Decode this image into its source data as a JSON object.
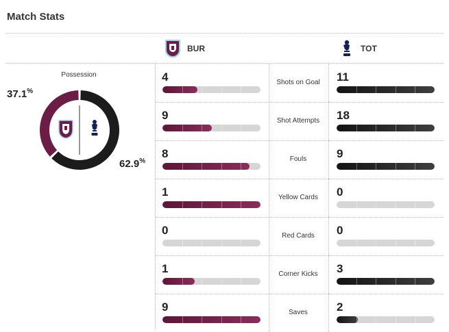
{
  "title": "Match Stats",
  "teams": {
    "home": {
      "abbr": "BUR",
      "color": "#6c1d45",
      "crest": "burnley-crest-icon"
    },
    "away": {
      "abbr": "TOT",
      "color": "#1b1b1b",
      "crest": "tottenham-crest-icon"
    }
  },
  "possession": {
    "label": "Possession",
    "home_pct": "37.1",
    "away_pct": "62.9",
    "home_value": 37.1,
    "away_value": 62.9,
    "pct_sign": "%"
  },
  "stats": [
    {
      "label": "Shots on Goal",
      "home": "4",
      "away": "11",
      "home_fill": 0.36,
      "away_fill": 1.0
    },
    {
      "label": "Shot Attempts",
      "home": "9",
      "away": "18",
      "home_fill": 0.5,
      "away_fill": 1.0
    },
    {
      "label": "Fouls",
      "home": "8",
      "away": "9",
      "home_fill": 0.89,
      "away_fill": 1.0
    },
    {
      "label": "Yellow Cards",
      "home": "1",
      "away": "0",
      "home_fill": 1.0,
      "away_fill": 0.0
    },
    {
      "label": "Red Cards",
      "home": "0",
      "away": "0",
      "home_fill": 0.0,
      "away_fill": 0.0
    },
    {
      "label": "Corner Kicks",
      "home": "1",
      "away": "3",
      "home_fill": 0.33,
      "away_fill": 1.0
    },
    {
      "label": "Saves",
      "home": "9",
      "away": "2",
      "home_fill": 1.0,
      "away_fill": 0.22
    }
  ]
}
